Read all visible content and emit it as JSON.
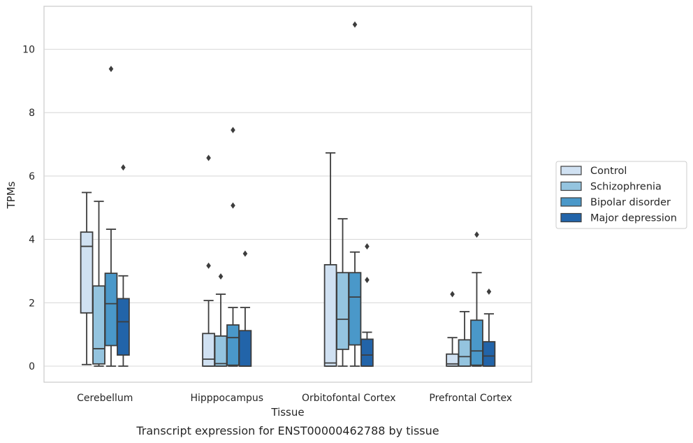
{
  "chart_data": {
    "type": "boxplot",
    "xlabel": "Tissue",
    "ylabel": "TPMs",
    "caption": "Transcript expression for ENST00000462788 by tissue",
    "categories": [
      "Cerebellum",
      "Hipppocampus",
      "Orbitofontal Cortex",
      "Prefrontal Cortex"
    ],
    "ylim": [
      -0.5,
      11.35
    ],
    "yticks": [
      0,
      2,
      4,
      6,
      8,
      10
    ],
    "grid": "horizontal",
    "legend_position": "right",
    "series": [
      {
        "name": "Control",
        "color": "#d0e1f2",
        "boxes": [
          {
            "min": 0.05,
            "q1": 1.68,
            "median": 3.78,
            "q3": 4.23,
            "max": 5.48,
            "outliers": []
          },
          {
            "min": 0.0,
            "q1": 0.0,
            "median": 0.22,
            "q3": 1.03,
            "max": 2.07,
            "outliers": [
              3.17,
              6.57
            ]
          },
          {
            "min": 0.0,
            "q1": 0.0,
            "median": 0.1,
            "q3": 3.2,
            "max": 6.73,
            "outliers": []
          },
          {
            "min": 0.0,
            "q1": 0.0,
            "median": 0.07,
            "q3": 0.38,
            "max": 0.9,
            "outliers": [
              2.27
            ]
          }
        ]
      },
      {
        "name": "Schizophrenia",
        "color": "#94c4df",
        "boxes": [
          {
            "min": 0.0,
            "q1": 0.07,
            "median": 0.55,
            "q3": 2.53,
            "max": 5.2,
            "outliers": []
          },
          {
            "min": 0.0,
            "q1": 0.0,
            "median": 0.08,
            "q3": 0.95,
            "max": 2.27,
            "outliers": [
              2.83
            ]
          },
          {
            "min": 0.0,
            "q1": 0.53,
            "median": 1.48,
            "q3": 2.95,
            "max": 4.65,
            "outliers": []
          },
          {
            "min": 0.0,
            "q1": 0.0,
            "median": 0.3,
            "q3": 0.83,
            "max": 1.72,
            "outliers": []
          }
        ]
      },
      {
        "name": "Bipolar disorder",
        "color": "#4a98c9",
        "boxes": [
          {
            "min": 0.0,
            "q1": 0.65,
            "median": 1.97,
            "q3": 2.93,
            "max": 4.32,
            "outliers": [
              9.38
            ]
          },
          {
            "min": 0.0,
            "q1": 0.03,
            "median": 0.9,
            "q3": 1.3,
            "max": 1.85,
            "outliers": [
              5.07,
              7.45
            ]
          },
          {
            "min": 0.0,
            "q1": 0.67,
            "median": 2.18,
            "q3": 2.95,
            "max": 3.6,
            "outliers": [
              10.78
            ]
          },
          {
            "min": 0.0,
            "q1": 0.03,
            "median": 0.48,
            "q3": 1.45,
            "max": 2.95,
            "outliers": [
              4.15
            ]
          }
        ]
      },
      {
        "name": "Major depression",
        "color": "#2264a9",
        "boxes": [
          {
            "min": 0.0,
            "q1": 0.35,
            "median": 1.4,
            "q3": 2.13,
            "max": 2.85,
            "outliers": [
              6.27
            ]
          },
          {
            "min": 0.0,
            "q1": 0.0,
            "median": 0.0,
            "q3": 1.12,
            "max": 1.85,
            "outliers": [
              3.55
            ]
          },
          {
            "min": 0.0,
            "q1": 0.0,
            "median": 0.35,
            "q3": 0.85,
            "max": 1.07,
            "outliers": [
              2.72,
              3.78
            ]
          },
          {
            "min": 0.0,
            "q1": 0.0,
            "median": 0.32,
            "q3": 0.77,
            "max": 1.65,
            "outliers": [
              2.35
            ]
          }
        ]
      }
    ]
  }
}
